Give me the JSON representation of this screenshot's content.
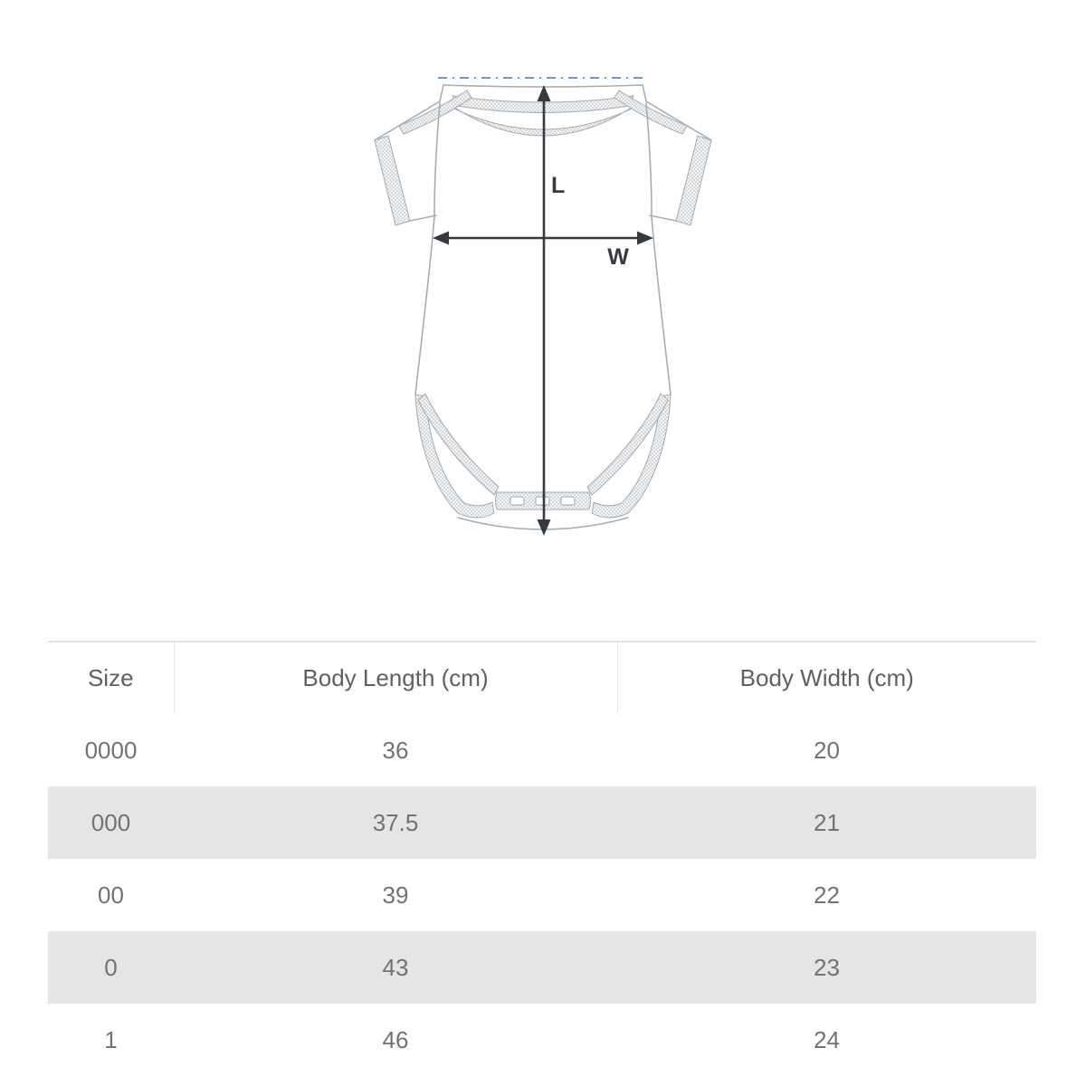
{
  "diagram": {
    "length_label": "L",
    "width_label": "W",
    "outline_color": "#a8adb2",
    "arrow_color": "#36393d",
    "fold_line_color": "#6e97d2"
  },
  "size_table": {
    "columns": [
      "Size",
      "Body Length (cm)",
      "Body Width (cm)"
    ],
    "rows": [
      [
        "0000",
        "36",
        "20"
      ],
      [
        "000",
        "37.5",
        "21"
      ],
      [
        "00",
        "39",
        "22"
      ],
      [
        "0",
        "43",
        "23"
      ],
      [
        "1",
        "46",
        "24"
      ]
    ],
    "stripe_color": "#e5e5e6",
    "border_color": "#e2e3e4"
  },
  "chart_data": {
    "type": "table",
    "columns": [
      "Size",
      "Body Length (cm)",
      "Body Width (cm)"
    ],
    "rows": [
      {
        "size": "0000",
        "body_length_cm": 36,
        "body_width_cm": 20
      },
      {
        "size": "000",
        "body_length_cm": 37.5,
        "body_width_cm": 21
      },
      {
        "size": "00",
        "body_length_cm": 39,
        "body_width_cm": 22
      },
      {
        "size": "0",
        "body_length_cm": 43,
        "body_width_cm": 23
      },
      {
        "size": "1",
        "body_length_cm": 46,
        "body_width_cm": 24
      }
    ],
    "annotations": [
      "L",
      "W"
    ]
  }
}
